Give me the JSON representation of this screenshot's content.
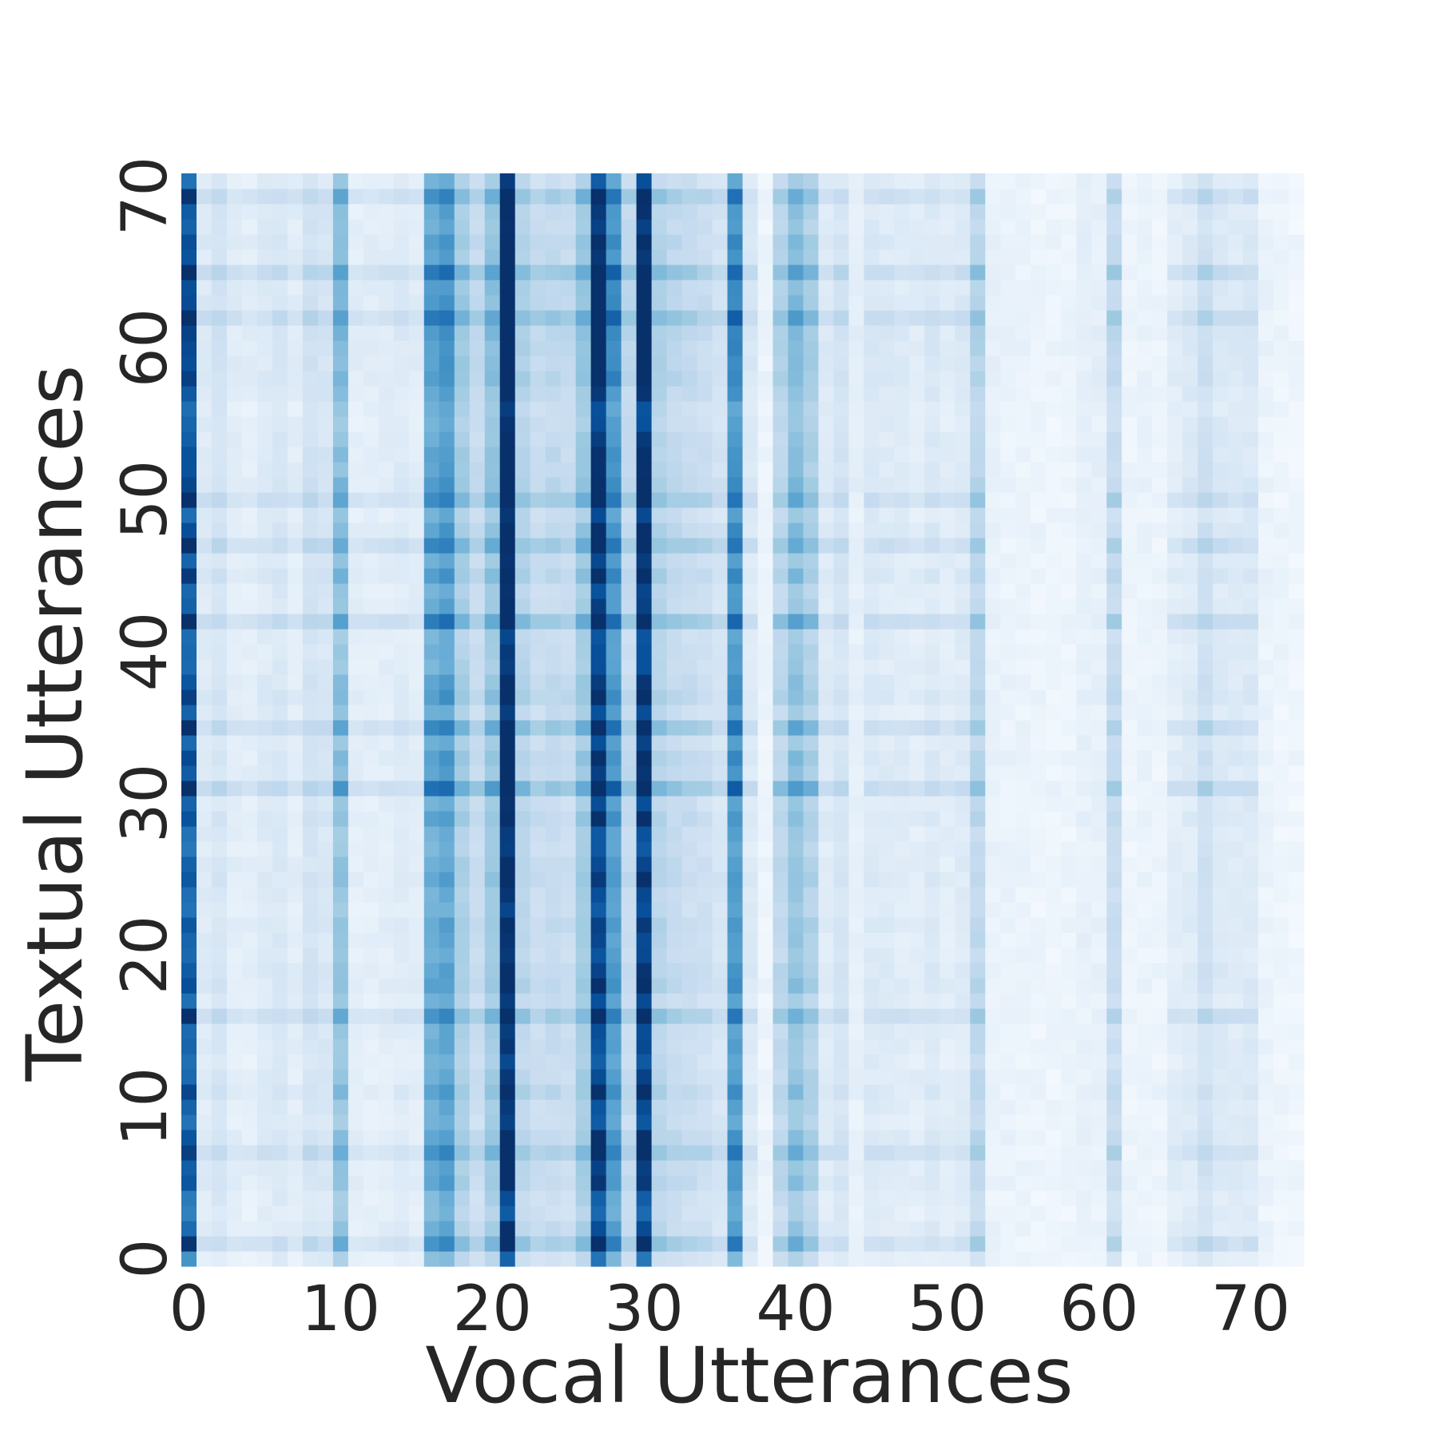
{
  "chart_data": {
    "type": "heatmap",
    "title": "",
    "xlabel": "Vocal Utterances",
    "ylabel": "Textual Utterances",
    "n_cols": 74,
    "n_rows": 72,
    "x_ticks": [
      "0",
      "10",
      "20",
      "30",
      "40",
      "50",
      "60",
      "70"
    ],
    "y_ticks": [
      "0",
      "10",
      "20",
      "30",
      "40",
      "50",
      "60",
      "70"
    ],
    "y_origin": "bottom",
    "colorbar": false,
    "colormap": "Blues",
    "colormap_stops": [
      "#f7fbff",
      "#deebf7",
      "#c6dbef",
      "#9ecae1",
      "#6baed6",
      "#4292c6",
      "#2171b5",
      "#08519c",
      "#08306b"
    ],
    "value_range": [
      0,
      1
    ],
    "col_intensity": [
      0.78,
      0.12,
      0.16,
      0.1,
      0.09,
      0.12,
      0.14,
      0.1,
      0.17,
      0.15,
      0.38,
      0.09,
      0.09,
      0.1,
      0.12,
      0.1,
      0.48,
      0.52,
      0.32,
      0.22,
      0.36,
      0.97,
      0.28,
      0.22,
      0.24,
      0.22,
      0.34,
      0.88,
      0.55,
      0.24,
      0.9,
      0.28,
      0.24,
      0.22,
      0.2,
      0.16,
      0.56,
      0.13,
      0.05,
      0.26,
      0.38,
      0.3,
      0.12,
      0.16,
      0.08,
      0.13,
      0.12,
      0.11,
      0.1,
      0.13,
      0.1,
      0.12,
      0.26,
      0.07,
      0.06,
      0.06,
      0.05,
      0.05,
      0.05,
      0.08,
      0.08,
      0.22,
      0.05,
      0.06,
      0.05,
      0.1,
      0.12,
      0.19,
      0.13,
      0.12,
      0.13,
      0.06,
      0.05,
      0.04
    ],
    "row_weight": [
      0.82,
      0.96,
      1.02,
      0.88,
      0.92,
      1.1,
      1.05,
      0.96,
      1.12,
      0.95,
      1.0,
      1.16,
      1.02,
      0.94,
      1.0,
      1.0,
      0.98,
      0.97,
      1.12,
      1.08,
      0.99,
      1.02,
      1.08,
      0.96,
      1.0,
      1.1,
      1.04,
      0.96,
      0.98,
      1.12,
      1.0,
      1.2,
      1.08,
      1.16,
      1.02,
      1.06,
      1.0,
      1.18,
      1.1,
      0.98,
      1.0,
      0.96,
      1.12,
      1.06,
      1.0,
      1.22,
      1.04,
      1.04,
      1.16,
      1.0,
      1.02,
      1.2,
      1.1,
      1.12,
      1.06,
      1.0,
      0.98,
      1.1,
      1.22,
      1.16,
      1.18,
      1.22,
      1.12,
      1.18,
      1.16,
      1.14,
      1.1,
      1.16,
      1.04,
      1.08,
      1.0,
      0.96
    ],
    "band_rows": [
      1,
      7,
      16,
      31,
      35,
      42,
      47,
      50,
      62,
      65,
      70
    ],
    "band_boost": 0.18
  }
}
